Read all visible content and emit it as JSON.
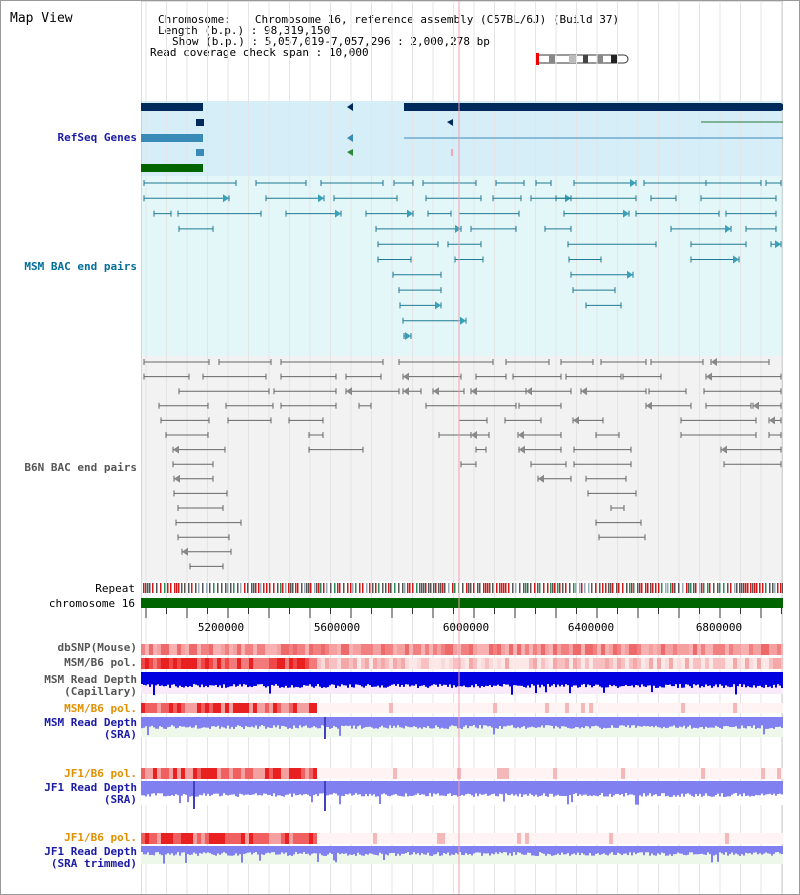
{
  "title": "Map View",
  "info": {
    "chromosome_label": "Chromosome",
    "chromosome_value": "Chromosome 16, reference assembly (C57BL/6J) (Build 37)",
    "length_label": "Length (b.p.)",
    "length_value": "98,319,150",
    "show_label": "Show (b.p.)",
    "show_value": "5,057,019-7,057,296 : 2,000,278 bp",
    "coverage_label": "Read coverage check span",
    "coverage_value": "10,000"
  },
  "tracks": {
    "refseq": "RefSeq Genes",
    "msm_bac": "MSM BAC end pairs",
    "b6n_bac": "B6N BAC end pairs",
    "repeat": "Repeat",
    "chromosome": "chromosome 16",
    "dbsnp": "dbSNP(Mouse)",
    "msm_b6_pol": "MSM/B6 pol.",
    "msm_depth_cap_1": "MSM Read Depth",
    "msm_depth_cap_2": "(Capillary)",
    "msm_b6_pol_2": "MSM/B6 pol.",
    "msm_depth_sra_1": "MSM Read Depth",
    "msm_depth_sra_2": "(SRA)",
    "jf1_pol_1": "JF1/B6 pol.",
    "jf1_depth_sra_1": "JF1 Read Depth",
    "jf1_depth_sra_2": "(SRA)",
    "jf1_pol_2": "JF1/B6 pol.",
    "jf1_depth_trim_1": "JF1 Read Depth",
    "jf1_depth_trim_2": "(SRA trimmed)"
  },
  "axis_ticks": [
    "5200000",
    "5600000",
    "6000000",
    "6400000",
    "6800000"
  ],
  "colors": {
    "refseq_bg": "#d6eef8",
    "msm_bg": "#e4f7f8",
    "b6n_bg": "#f2f2f2",
    "gene_dark": "#002a5c",
    "gene_mid": "#3a8ab8",
    "gene_green": "#006400",
    "msm_feature": "#1f7a93",
    "b6n_feature": "#666666",
    "chromosome_bar": "#006400",
    "depth_capillary": "#0000e0",
    "depth_sra": "#8080f0",
    "pol_red": "#f04040"
  }
}
